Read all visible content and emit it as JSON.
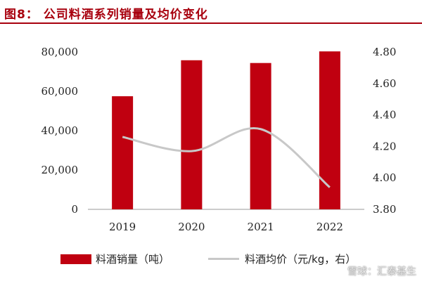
{
  "figure": {
    "title": "图8： 公司料酒系列销量及均价变化"
  },
  "watermark": "雪球：汇泰基生",
  "chart_data": {
    "type": "bar",
    "categories": [
      "2019",
      "2020",
      "2021",
      "2022"
    ],
    "series": [
      {
        "name": "料酒销量（吨）",
        "type": "bar",
        "axis": "left",
        "color": "#c00010",
        "values": [
          57500,
          75800,
          74400,
          80300
        ]
      },
      {
        "name": "料酒均价（元/kg，右）",
        "type": "line",
        "axis": "right",
        "color": "#c8c8c8",
        "values": [
          4.26,
          4.17,
          4.31,
          3.94
        ]
      }
    ],
    "left_axis": {
      "ylim": [
        0,
        80000
      ],
      "ticks": [
        "0",
        "20,000",
        "40,000",
        "60,000",
        "80,000"
      ]
    },
    "right_axis": {
      "ylim": [
        3.8,
        4.8
      ],
      "ticks": [
        "3.80",
        "4.00",
        "4.20",
        "4.40",
        "4.60",
        "4.80"
      ]
    },
    "grid": false,
    "legend_position": "bottom"
  }
}
